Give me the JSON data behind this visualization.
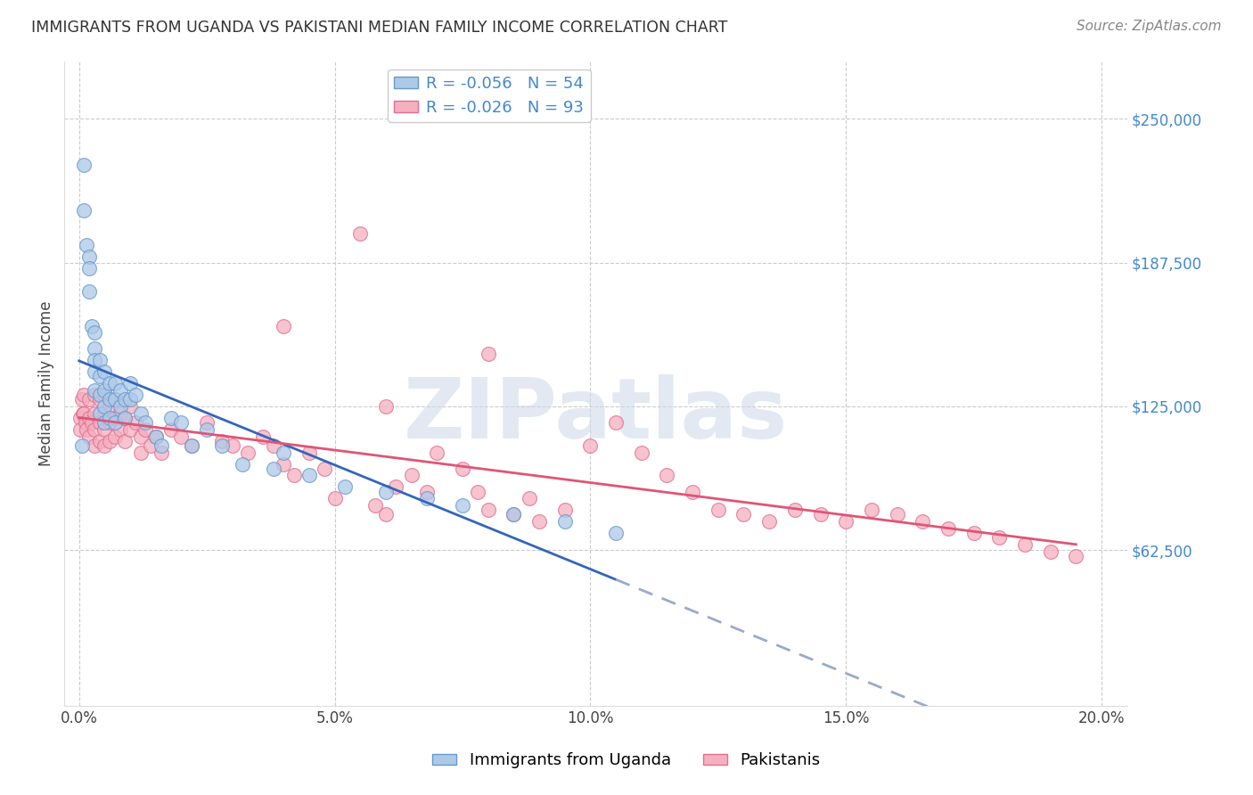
{
  "title": "IMMIGRANTS FROM UGANDA VS PAKISTANI MEDIAN FAMILY INCOME CORRELATION CHART",
  "source": "Source: ZipAtlas.com",
  "xlabel_ticks": [
    "0.0%",
    "5.0%",
    "10.0%",
    "15.0%",
    "20.0%"
  ],
  "xlabel_values": [
    0.0,
    0.05,
    0.1,
    0.15,
    0.2
  ],
  "ylabel_ticks": [
    "$62,500",
    "$125,000",
    "$187,500",
    "$250,000"
  ],
  "ylabel_values": [
    62500,
    125000,
    187500,
    250000
  ],
  "ylim": [
    -5000,
    275000
  ],
  "xlim": [
    -0.003,
    0.205
  ],
  "uganda_color": "#adc9e8",
  "pakistan_color": "#f5afc0",
  "uganda_edge": "#6699cc",
  "pakistan_edge": "#e07090",
  "uganda_R": -0.056,
  "uganda_N": 54,
  "pakistan_R": -0.026,
  "pakistan_N": 93,
  "trend_blue": "#3366bb",
  "trend_pink": "#e05575",
  "trend_dashed_color": "#99aacc",
  "watermark": "ZIPatlas",
  "watermark_color": "#ccd8e8",
  "uganda_x": [
    0.0005,
    0.001,
    0.001,
    0.0015,
    0.002,
    0.002,
    0.002,
    0.0025,
    0.003,
    0.003,
    0.003,
    0.003,
    0.003,
    0.004,
    0.004,
    0.004,
    0.004,
    0.005,
    0.005,
    0.005,
    0.005,
    0.006,
    0.006,
    0.006,
    0.007,
    0.007,
    0.007,
    0.008,
    0.008,
    0.009,
    0.009,
    0.01,
    0.01,
    0.011,
    0.012,
    0.013,
    0.015,
    0.016,
    0.018,
    0.02,
    0.022,
    0.025,
    0.028,
    0.032,
    0.038,
    0.04,
    0.045,
    0.052,
    0.06,
    0.068,
    0.075,
    0.085,
    0.095,
    0.105
  ],
  "uganda_y": [
    108000,
    230000,
    210000,
    195000,
    190000,
    185000,
    175000,
    160000,
    157000,
    150000,
    145000,
    140000,
    132000,
    145000,
    138000,
    130000,
    122000,
    140000,
    132000,
    125000,
    118000,
    135000,
    128000,
    120000,
    135000,
    128000,
    118000,
    132000,
    125000,
    128000,
    120000,
    135000,
    128000,
    130000,
    122000,
    118000,
    112000,
    108000,
    120000,
    118000,
    108000,
    115000,
    108000,
    100000,
    98000,
    105000,
    95000,
    90000,
    88000,
    85000,
    82000,
    78000,
    75000,
    70000
  ],
  "pakistan_x": [
    0.0002,
    0.0003,
    0.0005,
    0.0008,
    0.001,
    0.001,
    0.0012,
    0.0015,
    0.002,
    0.002,
    0.002,
    0.0025,
    0.003,
    0.003,
    0.003,
    0.003,
    0.004,
    0.004,
    0.004,
    0.005,
    0.005,
    0.005,
    0.005,
    0.006,
    0.006,
    0.006,
    0.007,
    0.007,
    0.007,
    0.008,
    0.008,
    0.009,
    0.009,
    0.01,
    0.01,
    0.011,
    0.012,
    0.012,
    0.013,
    0.014,
    0.015,
    0.016,
    0.018,
    0.02,
    0.022,
    0.025,
    0.028,
    0.03,
    0.033,
    0.036,
    0.038,
    0.04,
    0.042,
    0.045,
    0.048,
    0.05,
    0.055,
    0.058,
    0.06,
    0.062,
    0.065,
    0.068,
    0.07,
    0.075,
    0.078,
    0.08,
    0.085,
    0.088,
    0.09,
    0.095,
    0.1,
    0.105,
    0.11,
    0.115,
    0.12,
    0.125,
    0.13,
    0.135,
    0.14,
    0.145,
    0.15,
    0.155,
    0.16,
    0.165,
    0.17,
    0.175,
    0.18,
    0.185,
    0.19,
    0.195,
    0.04,
    0.06,
    0.08
  ],
  "pakistan_y": [
    120000,
    115000,
    128000,
    122000,
    130000,
    122000,
    118000,
    115000,
    128000,
    120000,
    112000,
    118000,
    130000,
    122000,
    115000,
    108000,
    128000,
    118000,
    110000,
    130000,
    122000,
    115000,
    108000,
    125000,
    118000,
    110000,
    128000,
    120000,
    112000,
    122000,
    115000,
    120000,
    110000,
    125000,
    115000,
    118000,
    112000,
    105000,
    115000,
    108000,
    112000,
    105000,
    115000,
    112000,
    108000,
    118000,
    110000,
    108000,
    105000,
    112000,
    108000,
    100000,
    95000,
    105000,
    98000,
    85000,
    200000,
    82000,
    78000,
    90000,
    95000,
    88000,
    105000,
    98000,
    88000,
    80000,
    78000,
    85000,
    75000,
    80000,
    108000,
    118000,
    105000,
    95000,
    88000,
    80000,
    78000,
    75000,
    80000,
    78000,
    75000,
    80000,
    78000,
    75000,
    72000,
    70000,
    68000,
    65000,
    62000,
    60000,
    160000,
    125000,
    148000
  ]
}
